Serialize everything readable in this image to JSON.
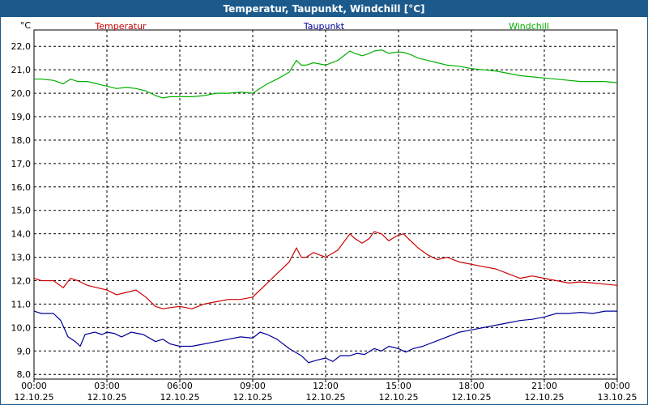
{
  "window": {
    "title": "Temperatur, Taupunkt, Windchill [°C]"
  },
  "chart_data": {
    "type": "line",
    "title": "Temperatur, Taupunkt, Windchill [°C]",
    "ylabel": "°C",
    "xlabel": "",
    "ylim": [
      7.8,
      22.7
    ],
    "xlim": [
      0,
      24
    ],
    "grid": true,
    "legend_position": "top",
    "y_ticks": [
      "8,0",
      "9,0",
      "10,0",
      "11,0",
      "12,0",
      "13,0",
      "14,0",
      "15,0",
      "16,0",
      "17,0",
      "18,0",
      "19,0",
      "20,0",
      "21,0",
      "22,0"
    ],
    "y_tick_values": [
      8,
      9,
      10,
      11,
      12,
      13,
      14,
      15,
      16,
      17,
      18,
      19,
      20,
      21,
      22
    ],
    "x_ticks": [
      {
        "time": "00:00",
        "date": "12.10.25",
        "x": 0
      },
      {
        "time": "03:00",
        "date": "12.10.25",
        "x": 3
      },
      {
        "time": "06:00",
        "date": "12.10.25",
        "x": 6
      },
      {
        "time": "09:00",
        "date": "12.10.25",
        "x": 9
      },
      {
        "time": "12:00",
        "date": "12.10.25",
        "x": 12
      },
      {
        "time": "15:00",
        "date": "12.10.25",
        "x": 15
      },
      {
        "time": "18:00",
        "date": "12.10.25",
        "x": 18
      },
      {
        "time": "21:00",
        "date": "12.10.25",
        "x": 21
      },
      {
        "time": "00:00",
        "date": "13.10.25",
        "x": 24
      }
    ],
    "series": [
      {
        "name": "Temperatur",
        "color": "#cc0000",
        "x": [
          0,
          0.3,
          0.8,
          1.2,
          1.5,
          1.8,
          2.2,
          2.6,
          3.0,
          3.4,
          3.8,
          4.2,
          4.6,
          5.0,
          5.3,
          5.6,
          6.0,
          6.5,
          7.0,
          7.5,
          8.0,
          8.5,
          9.0,
          9.3,
          9.6,
          10.0,
          10.5,
          10.8,
          11.0,
          11.2,
          11.5,
          12.0,
          12.5,
          13.0,
          13.2,
          13.5,
          13.8,
          14.0,
          14.3,
          14.6,
          14.9,
          15.2,
          15.5,
          15.8,
          16.2,
          16.6,
          17.0,
          17.5,
          18.0,
          18.5,
          19.0,
          19.5,
          20.0,
          20.5,
          21.0,
          21.5,
          22.0,
          22.5,
          23.0,
          23.5,
          24.0
        ],
        "values": [
          12.1,
          12.0,
          12.0,
          11.7,
          12.1,
          12.0,
          11.8,
          11.7,
          11.6,
          11.4,
          11.5,
          11.6,
          11.3,
          10.9,
          10.8,
          10.85,
          10.9,
          10.8,
          11.0,
          11.1,
          11.2,
          11.2,
          11.3,
          11.6,
          11.9,
          12.3,
          12.8,
          13.4,
          13.0,
          13.0,
          13.2,
          13.0,
          13.3,
          14.0,
          13.8,
          13.6,
          13.8,
          14.1,
          14.0,
          13.7,
          13.9,
          14.0,
          13.7,
          13.4,
          13.1,
          12.9,
          13.0,
          12.8,
          12.7,
          12.6,
          12.5,
          12.3,
          12.1,
          12.2,
          12.1,
          12.0,
          11.9,
          11.95,
          11.9,
          11.85,
          11.8
        ]
      },
      {
        "name": "Taupunkt",
        "color": "#000099",
        "x": [
          0,
          0.3,
          0.8,
          1.1,
          1.4,
          1.7,
          1.9,
          2.1,
          2.5,
          2.8,
          3.0,
          3.3,
          3.6,
          4.0,
          4.5,
          5.0,
          5.3,
          5.6,
          6.0,
          6.5,
          7.0,
          7.5,
          8.0,
          8.5,
          9.0,
          9.3,
          9.6,
          10.0,
          10.5,
          11.0,
          11.3,
          11.6,
          12.0,
          12.3,
          12.6,
          13.0,
          13.3,
          13.6,
          14.0,
          14.3,
          14.6,
          15.0,
          15.3,
          15.6,
          16.0,
          16.5,
          17.0,
          17.5,
          18.0,
          18.5,
          19.0,
          19.5,
          20.0,
          20.5,
          21.0,
          21.5,
          22.0,
          22.5,
          23.0,
          23.5,
          24.0
        ],
        "values": [
          10.7,
          10.6,
          10.6,
          10.3,
          9.6,
          9.4,
          9.2,
          9.7,
          9.8,
          9.7,
          9.8,
          9.75,
          9.6,
          9.8,
          9.7,
          9.4,
          9.5,
          9.3,
          9.2,
          9.2,
          9.3,
          9.4,
          9.5,
          9.6,
          9.55,
          9.8,
          9.7,
          9.5,
          9.1,
          8.8,
          8.5,
          8.6,
          8.7,
          8.55,
          8.8,
          8.8,
          8.9,
          8.85,
          9.1,
          9.0,
          9.2,
          9.1,
          8.95,
          9.1,
          9.2,
          9.4,
          9.6,
          9.8,
          9.9,
          10.0,
          10.1,
          10.2,
          10.3,
          10.35,
          10.45,
          10.6,
          10.6,
          10.65,
          10.6,
          10.7,
          10.7
        ]
      },
      {
        "name": "Windchill",
        "color": "#00b000",
        "x": [
          0,
          0.3,
          0.8,
          1.2,
          1.5,
          1.8,
          2.2,
          2.6,
          3.0,
          3.4,
          3.8,
          4.2,
          4.6,
          5.0,
          5.3,
          5.6,
          6.0,
          6.5,
          7.0,
          7.5,
          8.0,
          8.5,
          9.0,
          9.3,
          9.6,
          10.0,
          10.5,
          10.8,
          11.0,
          11.2,
          11.5,
          12.0,
          12.5,
          13.0,
          13.2,
          13.5,
          13.8,
          14.0,
          14.3,
          14.6,
          14.9,
          15.2,
          15.5,
          15.8,
          16.2,
          16.6,
          17.0,
          17.5,
          18.0,
          18.5,
          19.0,
          19.5,
          20.0,
          20.5,
          21.0,
          21.5,
          22.0,
          22.5,
          23.0,
          23.5,
          24.0
        ],
        "values": [
          20.6,
          20.6,
          20.55,
          20.4,
          20.6,
          20.5,
          20.5,
          20.4,
          20.3,
          20.2,
          20.25,
          20.2,
          20.1,
          19.9,
          19.8,
          19.85,
          19.85,
          19.85,
          19.9,
          20.0,
          20.0,
          20.05,
          20.0,
          20.2,
          20.4,
          20.6,
          20.9,
          21.4,
          21.2,
          21.2,
          21.3,
          21.2,
          21.4,
          21.8,
          21.7,
          21.6,
          21.7,
          21.8,
          21.85,
          21.7,
          21.75,
          21.75,
          21.65,
          21.5,
          21.4,
          21.3,
          21.2,
          21.15,
          21.05,
          21.0,
          20.95,
          20.85,
          20.75,
          20.7,
          20.65,
          20.6,
          20.55,
          20.5,
          20.5,
          20.5,
          20.45
        ]
      }
    ]
  }
}
